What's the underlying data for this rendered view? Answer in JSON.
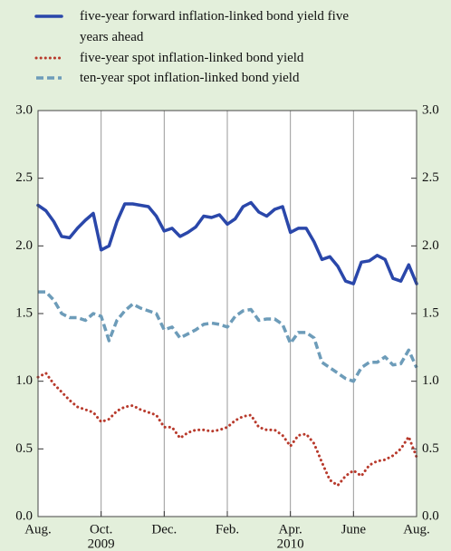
{
  "chart_data": {
    "type": "line",
    "x": [
      0,
      0.25,
      0.5,
      0.75,
      1,
      1.25,
      1.5,
      1.75,
      2,
      2.25,
      2.5,
      2.75,
      3,
      3.25,
      3.5,
      3.75,
      4,
      4.25,
      4.5,
      4.75,
      5,
      5.25,
      5.5,
      5.75,
      6,
      6.25,
      6.5,
      6.75,
      7,
      7.25,
      7.5,
      7.75,
      8,
      8.25,
      8.5,
      8.75,
      9,
      9.25,
      9.5,
      9.75,
      10,
      10.25,
      10.5,
      10.75,
      11,
      11.25,
      11.5,
      11.75,
      12
    ],
    "series": [
      {
        "name": "five-year forward inflation-linked bond yield five years ahead",
        "color": "#2a47aa",
        "style": "solid",
        "values": [
          2.3,
          2.26,
          2.18,
          2.07,
          2.06,
          2.13,
          2.19,
          2.24,
          1.97,
          2.0,
          2.18,
          2.31,
          2.31,
          2.3,
          2.29,
          2.22,
          2.11,
          2.13,
          2.07,
          2.1,
          2.14,
          2.22,
          2.21,
          2.23,
          2.16,
          2.2,
          2.29,
          2.32,
          2.25,
          2.22,
          2.27,
          2.29,
          2.1,
          2.13,
          2.13,
          2.03,
          1.9,
          1.92,
          1.85,
          1.74,
          1.72,
          1.88,
          1.89,
          1.93,
          1.9,
          1.76,
          1.74,
          1.86,
          1.72
        ]
      },
      {
        "name": "five-year spot inflation-linked bond yield",
        "color": "#b83a2c",
        "style": "dotted",
        "values": [
          1.03,
          1.06,
          0.98,
          0.92,
          0.86,
          0.81,
          0.79,
          0.77,
          0.7,
          0.72,
          0.78,
          0.81,
          0.82,
          0.79,
          0.77,
          0.75,
          0.66,
          0.66,
          0.58,
          0.62,
          0.64,
          0.64,
          0.63,
          0.64,
          0.66,
          0.71,
          0.74,
          0.75,
          0.66,
          0.64,
          0.64,
          0.6,
          0.52,
          0.6,
          0.61,
          0.54,
          0.4,
          0.27,
          0.23,
          0.3,
          0.34,
          0.3,
          0.38,
          0.41,
          0.42,
          0.45,
          0.5,
          0.59,
          0.44
        ]
      },
      {
        "name": "ten-year spot inflation-linked bond yield",
        "color": "#6d9cb9",
        "style": "dashed",
        "values": [
          1.66,
          1.66,
          1.6,
          1.5,
          1.47,
          1.47,
          1.45,
          1.5,
          1.48,
          1.3,
          1.45,
          1.52,
          1.57,
          1.54,
          1.52,
          1.5,
          1.38,
          1.4,
          1.32,
          1.35,
          1.38,
          1.42,
          1.43,
          1.42,
          1.4,
          1.48,
          1.52,
          1.53,
          1.45,
          1.46,
          1.46,
          1.42,
          1.28,
          1.36,
          1.36,
          1.32,
          1.14,
          1.1,
          1.06,
          1.02,
          1.0,
          1.1,
          1.14,
          1.14,
          1.18,
          1.12,
          1.13,
          1.23,
          1.1
        ]
      }
    ],
    "xlim": [
      0,
      12
    ],
    "xticks": [
      {
        "value": 0,
        "label": "Aug."
      },
      {
        "value": 2,
        "label": "Oct."
      },
      {
        "value": 4,
        "label": "Dec."
      },
      {
        "value": 6,
        "label": "Feb."
      },
      {
        "value": 8,
        "label": "Apr."
      },
      {
        "value": 10,
        "label": "June"
      },
      {
        "value": 12,
        "label": "Aug."
      }
    ],
    "x_year_labels": [
      {
        "value": 2,
        "label": "2009"
      },
      {
        "value": 8,
        "label": "2010"
      }
    ],
    "ylim": [
      0,
      3
    ],
    "yticks": [
      {
        "value": 0,
        "label": "0.0"
      },
      {
        "value": 0.5,
        "label": "0.5"
      },
      {
        "value": 1,
        "label": "1.0"
      },
      {
        "value": 1.5,
        "label": "1.5"
      },
      {
        "value": 2,
        "label": "2.0"
      },
      {
        "value": 2.5,
        "label": "2.5"
      },
      {
        "value": 3,
        "label": "3.0"
      }
    ],
    "right_axis": true,
    "grid": "vertical"
  }
}
